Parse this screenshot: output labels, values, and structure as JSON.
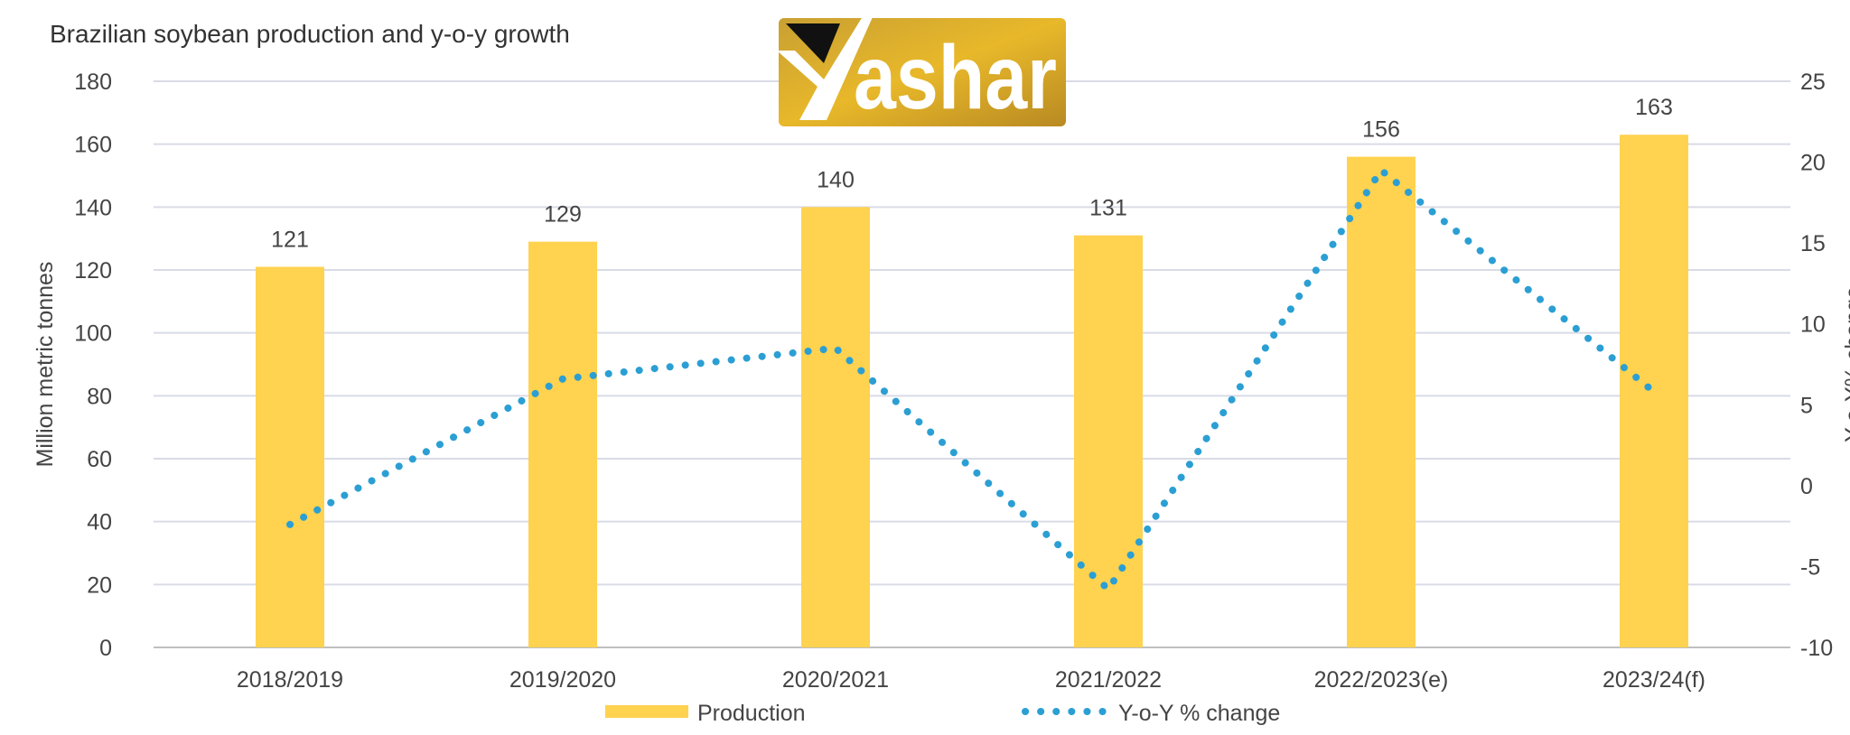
{
  "chart_data": {
    "type": "bar",
    "title": "Brazilian soybean production and y-o-y growth",
    "categories": [
      "2018/2019",
      "2019/2020",
      "2020/2021",
      "2021/2022",
      "2022/2023(e)",
      "2023/24(f)"
    ],
    "series": [
      {
        "name": "Production",
        "type": "bar",
        "axis": "left",
        "values": [
          121,
          129,
          140,
          131,
          156,
          163
        ],
        "color": "#FFD24F"
      },
      {
        "name": "Y-o-Y %  change",
        "type": "line",
        "style": "dotted",
        "axis": "right",
        "values": [
          -2.4,
          6.6,
          8.5,
          -6.4,
          19.5,
          5.8
        ],
        "color": "#2B9FD3"
      }
    ],
    "ylabel": "Million metric tonnes",
    "ylabel_right": "Y-o-Y% change",
    "ylim": [
      0,
      180
    ],
    "yticks": [
      0,
      20,
      40,
      60,
      80,
      100,
      120,
      140,
      160,
      180
    ],
    "ylim_right": [
      -10,
      25
    ],
    "yticks_right": [
      -10,
      -5,
      0,
      5,
      10,
      15,
      20,
      25
    ],
    "grid": true,
    "legend": "bottom"
  },
  "logo": {
    "text": "Yashar"
  }
}
